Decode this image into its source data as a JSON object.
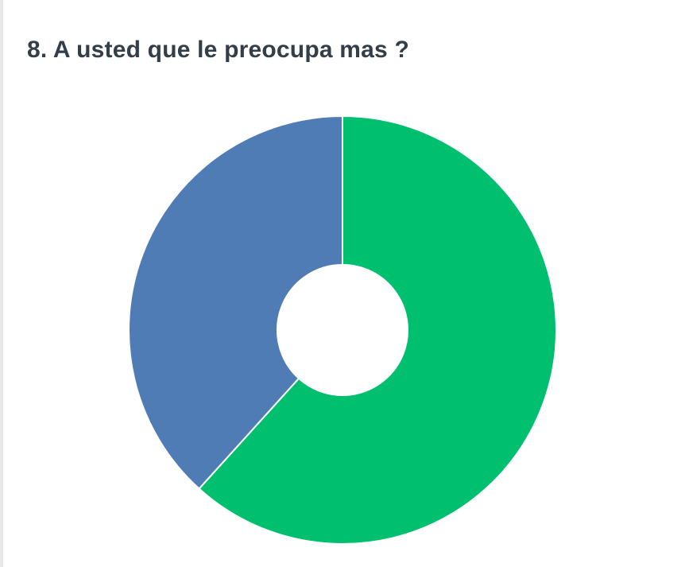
{
  "question": {
    "title": "8. A usted que le preocupa mas ?"
  },
  "chart_data": {
    "type": "pie",
    "variant": "donut",
    "title": "8. A usted que le preocupa mas ?",
    "slices": [
      {
        "value": 61.7,
        "color": "#00bf6f"
      },
      {
        "value": 38.3,
        "color": "#507cb6"
      }
    ],
    "start_angle_deg": 0,
    "direction": "clockwise",
    "slice_border_color": "#ffffff",
    "legend": "none"
  }
}
